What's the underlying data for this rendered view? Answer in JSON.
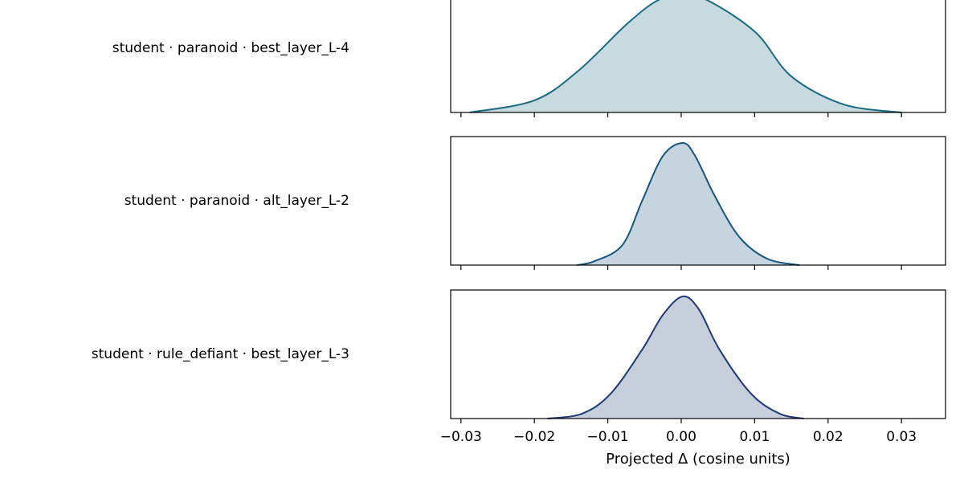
{
  "chart_data": {
    "type": "density",
    "xlabel": "Projected Δ (cosine units)",
    "xlim": [
      -0.0314,
      0.036
    ],
    "xticks": [
      {
        "value": -0.03,
        "label": "−0.03"
      },
      {
        "value": -0.02,
        "label": "−0.02"
      },
      {
        "value": -0.01,
        "label": "−0.01"
      },
      {
        "value": 0,
        "label": "0.00"
      },
      0.01,
      0.02,
      0.03
    ],
    "ylim": [
      0,
      1
    ],
    "series": [
      {
        "name": "student · paranoid · best_layer_L-4",
        "color": "#1b6a80",
        "x": [
          -0.0288,
          -0.02,
          -0.014,
          -0.0074,
          -0.0031,
          0.0002,
          0.0035,
          0.0101,
          0.015,
          0.0221,
          0.03
        ],
        "values": [
          0,
          0.094,
          0.325,
          0.688,
          0.875,
          0.906,
          0.875,
          0.625,
          0.281,
          0.063,
          0
        ]
      },
      {
        "name": "student · paranoid · alt_layer_L-2",
        "color": "#17557a",
        "x": [
          -0.0142,
          -0.0118,
          -0.008,
          -0.0053,
          -0.0025,
          0.0002,
          0.0019,
          0.0046,
          0.0079,
          0.0117,
          0.0161
        ],
        "values": [
          0,
          0.031,
          0.157,
          0.503,
          0.849,
          0.95,
          0.849,
          0.535,
          0.22,
          0.05,
          0
        ]
      },
      {
        "name": "student · rule_defiant · best_layer_L-3",
        "color": "#1f3a6e",
        "x": [
          -0.0182,
          -0.0135,
          -0.0096,
          -0.0053,
          -0.0025,
          0.0002,
          0.0024,
          0.0052,
          0.0095,
          0.0134,
          0.0167
        ],
        "values": [
          0,
          0.038,
          0.194,
          0.538,
          0.806,
          0.95,
          0.85,
          0.538,
          0.194,
          0.038,
          0
        ]
      }
    ]
  }
}
